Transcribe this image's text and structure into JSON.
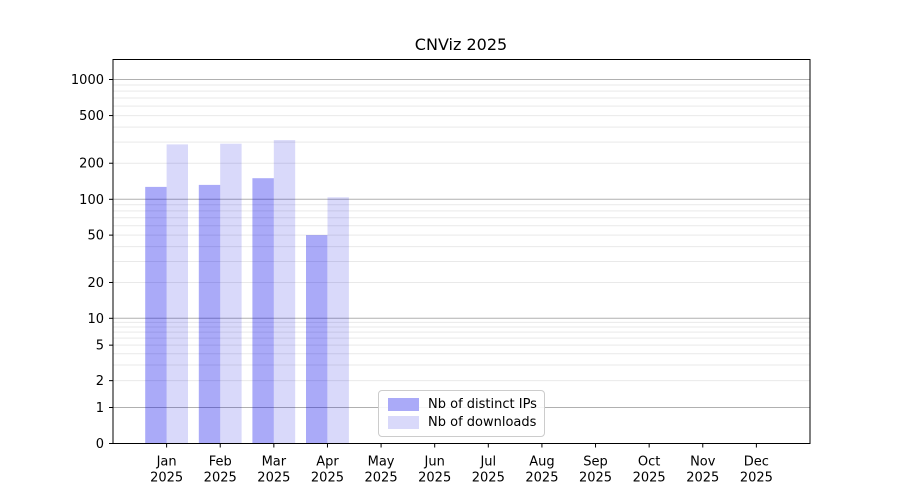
{
  "chart_data": {
    "type": "bar",
    "title": "CNViz 2025",
    "x_year_line": "2025",
    "categories": [
      "Jan",
      "Feb",
      "Mar",
      "Apr",
      "May",
      "Jun",
      "Jul",
      "Aug",
      "Sep",
      "Oct",
      "Nov",
      "Dec"
    ],
    "series": [
      {
        "name": "Nb of distinct IPs",
        "color": "#aaaaf8",
        "fill": "rgba(0,0,234,0.333)",
        "values": [
          127,
          132,
          150,
          50,
          null,
          null,
          null,
          null,
          null,
          null,
          null,
          null
        ]
      },
      {
        "name": "Nb of downloads",
        "color": "#d9d9fa",
        "fill": "rgba(0,0,223,0.15)",
        "values": [
          287,
          291,
          312,
          104,
          null,
          null,
          null,
          null,
          null,
          null,
          null,
          null
        ]
      }
    ],
    "yaxis": {
      "scale": "symlog",
      "tick_labels": [
        0,
        1,
        2,
        5,
        10,
        20,
        50,
        100,
        200,
        500,
        1000
      ],
      "major_grid": [
        1,
        10,
        100,
        1000
      ],
      "range": [
        0,
        1450
      ]
    },
    "grid": true,
    "legend_position": "lower center",
    "colors": {
      "major_grid": "#b0b0b0",
      "minor_grid": "#e9e9e9",
      "spine": "#000000",
      "legend_border": "#cccccc"
    }
  }
}
